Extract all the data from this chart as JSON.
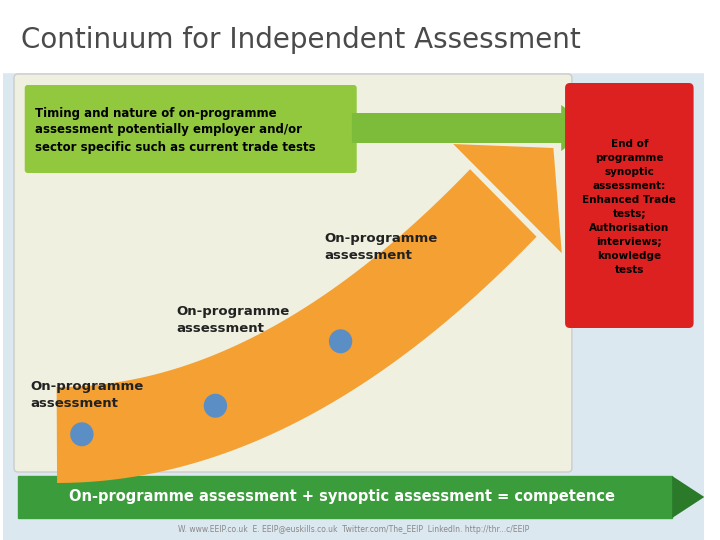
{
  "title": "Continuum for Independent Assessment",
  "title_color": "#4a4a4a",
  "title_fontsize": 20,
  "bg_color": "#ffffff",
  "main_box_color": "#f0f0e0",
  "green_box_text": "Timing and nature of on-programme\nassessment potentially employer and/or\nsector specific such as current trade tests",
  "green_box_color": "#92c83e",
  "green_box_text_color": "#000000",
  "red_box_color": "#dd2020",
  "red_box_text": "End of\nprogramme\nsynoptic\nassessment:\nEnhanced Trade\ntests;\nAuthorisation\ninterviews;\nknowledge\ntests",
  "red_box_text_color": "#000000",
  "orange_arrow_color": "#f5a033",
  "green_arrow_color": "#7dbc3a",
  "bottom_arrow_color": "#3a9c3a",
  "bottom_text": "On-programme assessment + synoptic assessment = competence",
  "bottom_text_color": "#ffffff",
  "dot_color": "#5b8ec4",
  "label1": "On-programme\nassessment",
  "label2": "On-programme\nassessment",
  "label3": "On-programme\nassessment",
  "footer_text": "W. www.EEIP.co.uk  E. EEIP@euskills.co.uk  Twitter.com/The_EEIP  LinkedIn. http://thr...c/EEIP",
  "footer_color": "#888888"
}
